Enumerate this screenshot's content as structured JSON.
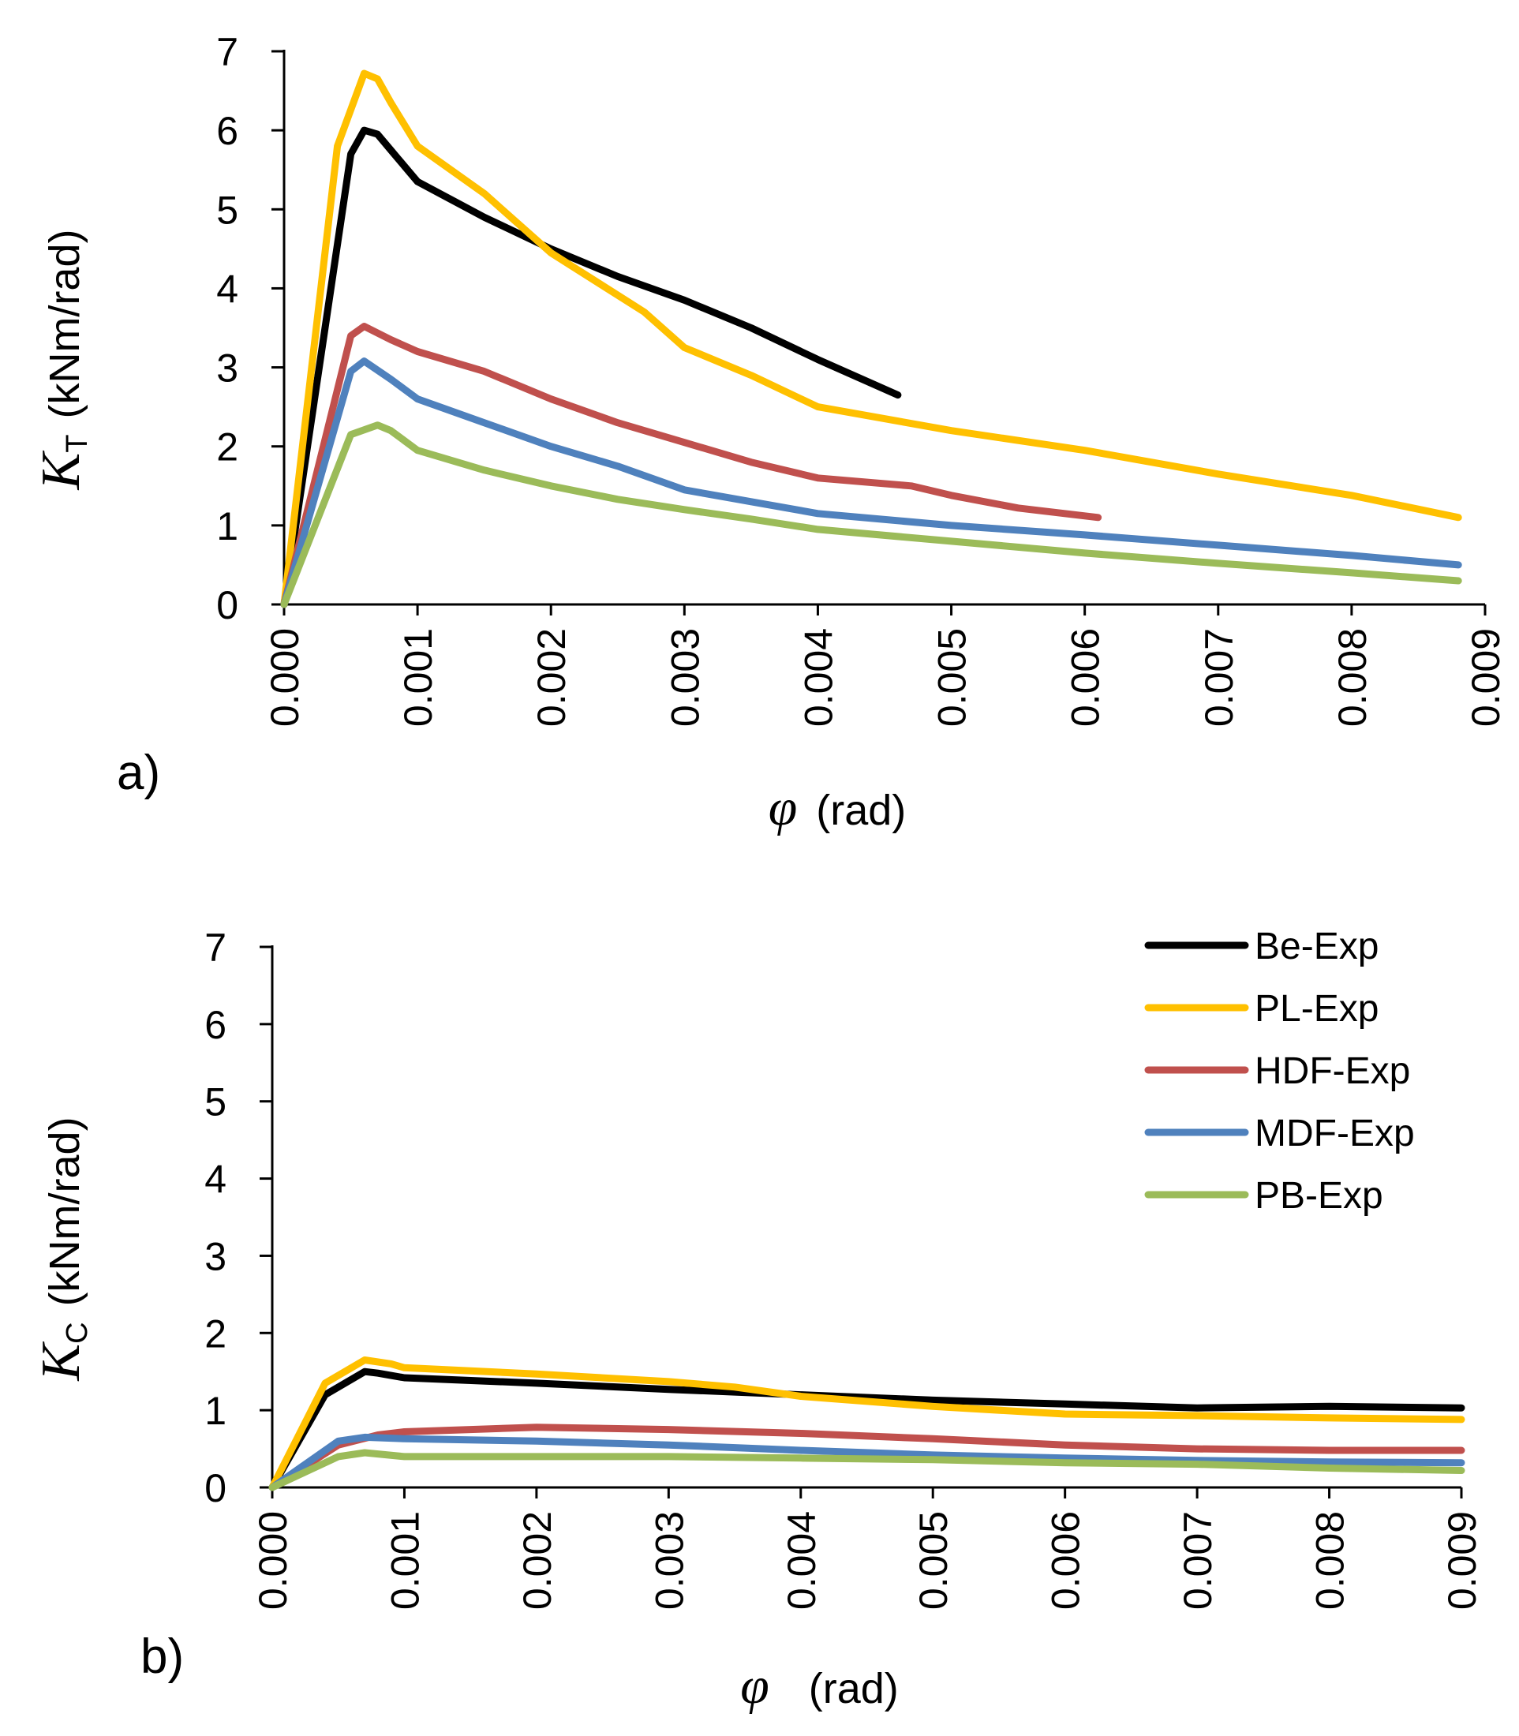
{
  "colors": {
    "Be-Exp": "#000000",
    "PL-Exp": "#FFC000",
    "HDF-Exp": "#C0504D",
    "MDF-Exp": "#4F81BD",
    "PB-Exp": "#9BBB59"
  },
  "chart_data": [
    {
      "type": "line",
      "panel_label": "a)",
      "ylabel": {
        "symbol": "K",
        "subscript": "T",
        "unit": "(kNm/rad)"
      },
      "xlabel": {
        "symbol": "φ",
        "unit": "(rad)"
      },
      "xlim": [
        0,
        0.009
      ],
      "ylim": [
        0,
        7
      ],
      "xticks": [
        "0.000",
        "0.001",
        "0.002",
        "0.003",
        "0.004",
        "0.005",
        "0.006",
        "0.007",
        "0.008",
        "0.009"
      ],
      "yticks": [
        "0",
        "1",
        "2",
        "3",
        "4",
        "5",
        "6",
        "7"
      ],
      "grid": false,
      "series": [
        {
          "name": "Be-Exp",
          "points": [
            [
              0,
              0
            ],
            [
              0.0005,
              5.7
            ],
            [
              0.0006,
              6.0
            ],
            [
              0.0007,
              5.95
            ],
            [
              0.0008,
              5.75
            ],
            [
              0.001,
              5.35
            ],
            [
              0.0015,
              4.9
            ],
            [
              0.002,
              4.5
            ],
            [
              0.0025,
              4.15
            ],
            [
              0.003,
              3.85
            ],
            [
              0.0035,
              3.5
            ],
            [
              0.004,
              3.1
            ],
            [
              0.0046,
              2.65
            ]
          ]
        },
        {
          "name": "PL-Exp",
          "points": [
            [
              0,
              0
            ],
            [
              0.0004,
              5.8
            ],
            [
              0.0006,
              6.72
            ],
            [
              0.0007,
              6.65
            ],
            [
              0.0008,
              6.35
            ],
            [
              0.001,
              5.8
            ],
            [
              0.0015,
              5.2
            ],
            [
              0.002,
              4.45
            ],
            [
              0.0027,
              3.7
            ],
            [
              0.003,
              3.25
            ],
            [
              0.0035,
              2.9
            ],
            [
              0.004,
              2.5
            ],
            [
              0.005,
              2.2
            ],
            [
              0.006,
              1.95
            ],
            [
              0.007,
              1.65
            ],
            [
              0.008,
              1.38
            ],
            [
              0.0088,
              1.1
            ]
          ]
        },
        {
          "name": "HDF-Exp",
          "points": [
            [
              0,
              0
            ],
            [
              0.0005,
              3.4
            ],
            [
              0.0006,
              3.52
            ],
            [
              0.0008,
              3.35
            ],
            [
              0.001,
              3.2
            ],
            [
              0.0015,
              2.95
            ],
            [
              0.002,
              2.6
            ],
            [
              0.0025,
              2.3
            ],
            [
              0.003,
              2.05
            ],
            [
              0.0035,
              1.8
            ],
            [
              0.004,
              1.6
            ],
            [
              0.0047,
              1.5
            ],
            [
              0.005,
              1.38
            ],
            [
              0.0055,
              1.22
            ],
            [
              0.0061,
              1.1
            ]
          ]
        },
        {
          "name": "MDF-Exp",
          "points": [
            [
              0,
              0
            ],
            [
              0.0005,
              2.95
            ],
            [
              0.0006,
              3.08
            ],
            [
              0.0008,
              2.85
            ],
            [
              0.001,
              2.6
            ],
            [
              0.0015,
              2.3
            ],
            [
              0.002,
              2.0
            ],
            [
              0.0025,
              1.75
            ],
            [
              0.003,
              1.45
            ],
            [
              0.0035,
              1.3
            ],
            [
              0.004,
              1.15
            ],
            [
              0.005,
              1.0
            ],
            [
              0.006,
              0.88
            ],
            [
              0.007,
              0.75
            ],
            [
              0.008,
              0.62
            ],
            [
              0.0088,
              0.5
            ]
          ]
        },
        {
          "name": "PB-Exp",
          "points": [
            [
              0,
              0
            ],
            [
              0.0005,
              2.15
            ],
            [
              0.0007,
              2.27
            ],
            [
              0.0008,
              2.2
            ],
            [
              0.001,
              1.95
            ],
            [
              0.0015,
              1.7
            ],
            [
              0.002,
              1.5
            ],
            [
              0.0025,
              1.33
            ],
            [
              0.003,
              1.2
            ],
            [
              0.0035,
              1.08
            ],
            [
              0.004,
              0.95
            ],
            [
              0.005,
              0.8
            ],
            [
              0.006,
              0.65
            ],
            [
              0.007,
              0.52
            ],
            [
              0.008,
              0.4
            ],
            [
              0.0088,
              0.3
            ]
          ]
        }
      ]
    },
    {
      "type": "line",
      "panel_label": "b)",
      "ylabel": {
        "symbol": "K",
        "subscript": "C",
        "unit": "(kNm/rad)"
      },
      "xlabel": {
        "symbol": "φ",
        "unit": "(rad)"
      },
      "xlim": [
        0,
        0.009
      ],
      "ylim": [
        0,
        7
      ],
      "xticks": [
        "0.000",
        "0.001",
        "0.002",
        "0.003",
        "0.004",
        "0.005",
        "0.006",
        "0.007",
        "0.008",
        "0.009"
      ],
      "yticks": [
        "0",
        "1",
        "2",
        "3",
        "4",
        "5",
        "6",
        "7"
      ],
      "grid": false,
      "legend": {
        "position": "top-right",
        "entries": [
          "Be-Exp",
          "PL-Exp",
          "HDF-Exp",
          "MDF-Exp",
          "PB-Exp"
        ]
      },
      "series": [
        {
          "name": "Be-Exp",
          "points": [
            [
              0,
              0
            ],
            [
              0.0004,
              1.2
            ],
            [
              0.0007,
              1.5
            ],
            [
              0.0008,
              1.48
            ],
            [
              0.001,
              1.42
            ],
            [
              0.002,
              1.35
            ],
            [
              0.003,
              1.27
            ],
            [
              0.004,
              1.2
            ],
            [
              0.005,
              1.13
            ],
            [
              0.006,
              1.08
            ],
            [
              0.007,
              1.03
            ],
            [
              0.008,
              1.05
            ],
            [
              0.009,
              1.03
            ]
          ]
        },
        {
          "name": "PL-Exp",
          "points": [
            [
              0,
              0
            ],
            [
              0.0004,
              1.35
            ],
            [
              0.0007,
              1.65
            ],
            [
              0.0009,
              1.6
            ],
            [
              0.001,
              1.55
            ],
            [
              0.002,
              1.47
            ],
            [
              0.003,
              1.37
            ],
            [
              0.0035,
              1.3
            ],
            [
              0.004,
              1.18
            ],
            [
              0.005,
              1.05
            ],
            [
              0.006,
              0.95
            ],
            [
              0.007,
              0.93
            ],
            [
              0.008,
              0.9
            ],
            [
              0.009,
              0.88
            ]
          ]
        },
        {
          "name": "HDF-Exp",
          "points": [
            [
              0,
              0
            ],
            [
              0.0005,
              0.55
            ],
            [
              0.0008,
              0.68
            ],
            [
              0.001,
              0.72
            ],
            [
              0.002,
              0.78
            ],
            [
              0.003,
              0.75
            ],
            [
              0.004,
              0.7
            ],
            [
              0.005,
              0.63
            ],
            [
              0.006,
              0.55
            ],
            [
              0.007,
              0.5
            ],
            [
              0.008,
              0.48
            ],
            [
              0.009,
              0.48
            ]
          ]
        },
        {
          "name": "MDF-Exp",
          "points": [
            [
              0,
              0
            ],
            [
              0.0005,
              0.6
            ],
            [
              0.0007,
              0.65
            ],
            [
              0.001,
              0.63
            ],
            [
              0.002,
              0.6
            ],
            [
              0.003,
              0.55
            ],
            [
              0.004,
              0.48
            ],
            [
              0.005,
              0.42
            ],
            [
              0.006,
              0.38
            ],
            [
              0.007,
              0.35
            ],
            [
              0.008,
              0.33
            ],
            [
              0.009,
              0.32
            ]
          ]
        },
        {
          "name": "PB-Exp",
          "points": [
            [
              0,
              0
            ],
            [
              0.0005,
              0.4
            ],
            [
              0.0007,
              0.45
            ],
            [
              0.001,
              0.4
            ],
            [
              0.002,
              0.4
            ],
            [
              0.003,
              0.4
            ],
            [
              0.004,
              0.38
            ],
            [
              0.005,
              0.36
            ],
            [
              0.006,
              0.32
            ],
            [
              0.007,
              0.3
            ],
            [
              0.008,
              0.25
            ],
            [
              0.009,
              0.22
            ]
          ]
        }
      ]
    }
  ]
}
